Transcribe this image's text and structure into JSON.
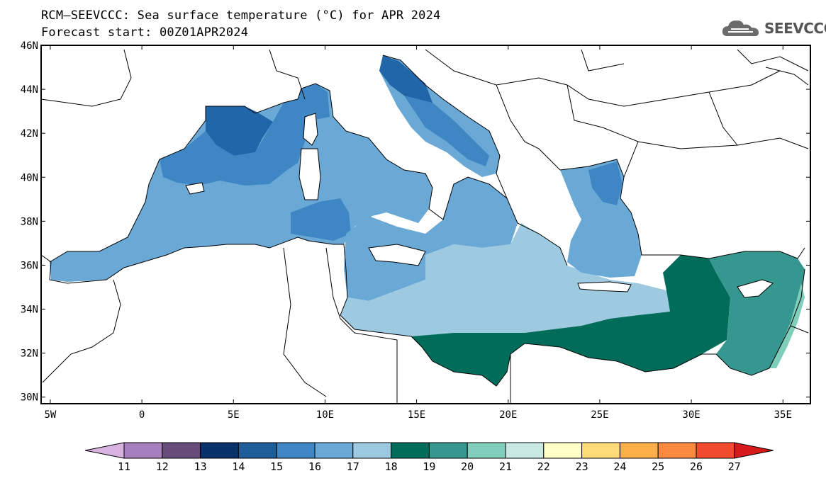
{
  "title": {
    "line1": "RCM–SEEVCCC: Sea surface temperature (°C) for APR 2024",
    "line2": "Forecast start: 00Z01APR2024"
  },
  "logo": {
    "icon": "cloud-icon",
    "text": "SEEVCCC"
  },
  "map": {
    "lon_range": [
      -5.5,
      36.5
    ],
    "lat_range": [
      29.7,
      46.0
    ],
    "lat_ticks": [
      {
        "value": 46,
        "label": "46N"
      },
      {
        "value": 44,
        "label": "44N"
      },
      {
        "value": 42,
        "label": "42N"
      },
      {
        "value": 40,
        "label": "40N"
      },
      {
        "value": 38,
        "label": "38N"
      },
      {
        "value": 36,
        "label": "36N"
      },
      {
        "value": 34,
        "label": "34N"
      },
      {
        "value": 32,
        "label": "32N"
      },
      {
        "value": 30,
        "label": "30N"
      }
    ],
    "lon_ticks": [
      {
        "value": -5,
        "label": "5W"
      },
      {
        "value": 0,
        "label": "0"
      },
      {
        "value": 5,
        "label": "5E"
      },
      {
        "value": 10,
        "label": "10E"
      },
      {
        "value": 15,
        "label": "15E"
      },
      {
        "value": 20,
        "label": "20E"
      },
      {
        "value": 25,
        "label": "25E"
      },
      {
        "value": 30,
        "label": "30E"
      },
      {
        "value": 35,
        "label": "35E"
      }
    ],
    "sst_regions": [
      {
        "name": "western-med",
        "class": "16-17",
        "color": "#6aa9d6"
      },
      {
        "name": "gulf-of-lion",
        "class": "14-15",
        "color": "#2166a8"
      },
      {
        "name": "tyrrhenian",
        "class": "16-17",
        "color": "#6aa9d6"
      },
      {
        "name": "north-adriatic",
        "class": "14-15",
        "color": "#2166a8"
      },
      {
        "name": "ionian",
        "class": "17-18",
        "color": "#9ecae1"
      },
      {
        "name": "levantine",
        "class": "18-19",
        "color": "#016c59"
      },
      {
        "name": "cyprus-east",
        "class": "19-20",
        "color": "#35978f"
      },
      {
        "name": "north-aegean",
        "class": "15-16",
        "color": "#4292c6"
      }
    ]
  },
  "colorbar": {
    "colors": [
      "#d9b3e0",
      "#a67fbe",
      "#674b79",
      "#08306b",
      "#1f5d99",
      "#3e87c4",
      "#6aa9d6",
      "#9ecae1",
      "#016c59",
      "#35978f",
      "#7fcdbb",
      "#c7e9e0",
      "#ffffc6",
      "#fedd78",
      "#fbb04a",
      "#f98a3f",
      "#f04b2e",
      "#d7191c"
    ],
    "labels": [
      "11",
      "12",
      "13",
      "14",
      "15",
      "16",
      "17",
      "18",
      "19",
      "20",
      "21",
      "22",
      "23",
      "24",
      "25",
      "26",
      "27"
    ]
  }
}
